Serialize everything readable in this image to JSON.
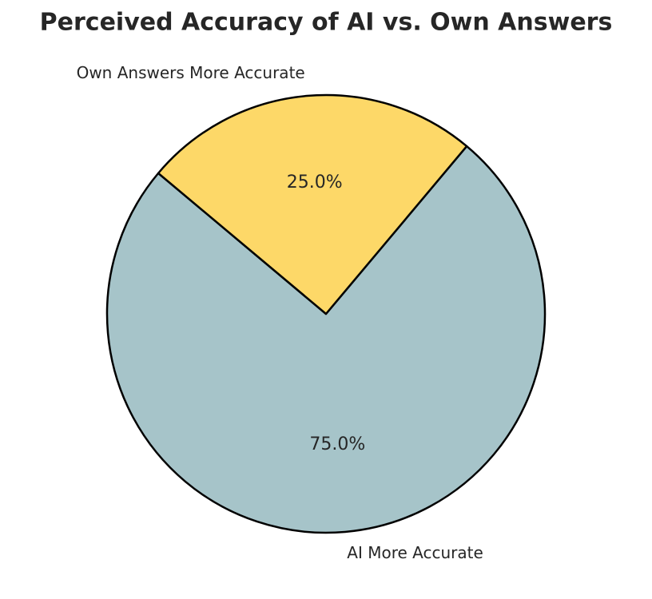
{
  "chart_data": {
    "type": "pie",
    "title": "Perceived Accuracy of AI vs. Own Answers",
    "categories": [
      "AI More Accurate",
      "Own Answers More Accurate"
    ],
    "values": [
      75,
      25
    ],
    "value_labels": [
      "75.0%",
      "25.0%"
    ],
    "colors": [
      "#a6c4c9",
      "#fdd868"
    ]
  }
}
